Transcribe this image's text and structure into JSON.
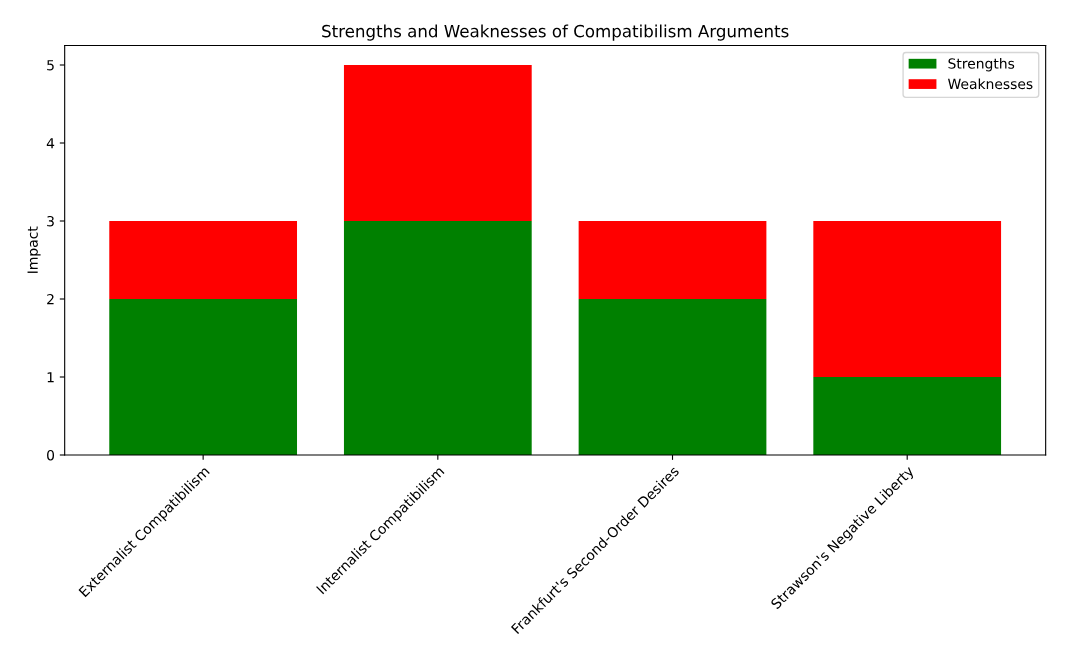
{
  "chart_data": {
    "type": "bar",
    "title": "Strengths and Weaknesses of Compatibilism Arguments",
    "ylabel": "Impact",
    "categories": [
      "Externalist Compatibilism",
      "Internalist Compatibilism",
      "Frankfurt's Second-Order Desires",
      "Strawson's Negative Liberty"
    ],
    "series": [
      {
        "name": "Strengths",
        "color": "#008000",
        "values": [
          2,
          3,
          2,
          1
        ]
      },
      {
        "name": "Weaknesses",
        "color": "#ff0000",
        "values": [
          1,
          2,
          1,
          2
        ]
      }
    ],
    "stacked": true,
    "ylim": [
      0,
      5.25
    ],
    "yticks": [
      0,
      1,
      2,
      3,
      4,
      5
    ],
    "legend": "top right",
    "grid": false
  }
}
